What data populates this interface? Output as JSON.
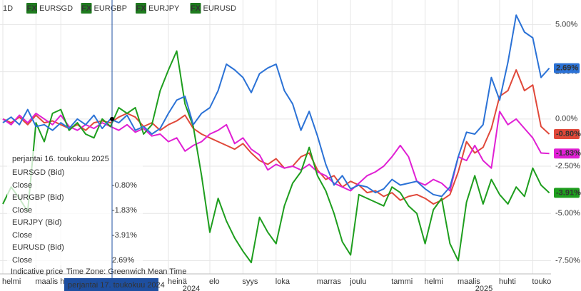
{
  "chart_data": {
    "type": "line",
    "interval": "1D",
    "categories": [
      "helmi",
      null,
      null,
      null,
      "maalis",
      null,
      null,
      "huhti",
      null,
      null,
      null,
      null,
      null,
      null,
      null,
      null,
      null,
      null,
      null,
      null,
      "heinä",
      null,
      null,
      null,
      null,
      "elo",
      null,
      null,
      null,
      "syys",
      null,
      null,
      null,
      "loka",
      null,
      null,
      null,
      null,
      "marras",
      null,
      null,
      null,
      "joulu",
      null,
      null,
      null,
      null,
      "tammi",
      null,
      null,
      null,
      "helmi",
      null,
      null,
      null,
      "maalis",
      null,
      null,
      null,
      null,
      "huhti",
      null,
      null,
      null,
      "touko",
      null,
      null
    ],
    "years": [
      "2024",
      "2025"
    ],
    "series": [
      {
        "name": "EURSGD",
        "badge": "FX",
        "tooltip_name": "EURSGD (Bid)",
        "color": "#e0483a",
        "close_label": "-0.80%",
        "values": [
          0,
          -0.2,
          0.1,
          -0.3,
          0.2,
          -0.2,
          -0.1,
          -0.3,
          -0.5,
          -0.3,
          -0.6,
          -0.2,
          -0.1,
          -0.2,
          0.1,
          0.3,
          0.1,
          -0.4,
          -0.2,
          -0.6,
          -0.3,
          -0.1,
          0.2,
          -0.5,
          -0.8,
          -1.0,
          -1.2,
          -1.4,
          -1.6,
          -1.3,
          -1.8,
          -2.2,
          -2.4,
          -2.1,
          -2.6,
          -2.5,
          -2.0,
          -1.8,
          -2.7,
          -3.2,
          -3.0,
          -3.6,
          -3.3,
          -3.5,
          -3.9,
          -3.8,
          -4.1,
          -3.9,
          -4.3,
          -4.1,
          -4.0,
          -4.2,
          -4.5,
          -4.3,
          -4.0,
          -2.8,
          -1.2,
          -1.8,
          -1.5,
          -0.5,
          1.2,
          1.5,
          2.6,
          1.5,
          1.8,
          -0.4,
          -0.8
        ]
      },
      {
        "name": "EURGBP",
        "badge": "FX",
        "tooltip_name": "EURGBP (Bid)",
        "color": "#e020d4",
        "close_label": "-1.83%",
        "values": [
          0.0,
          -0.3,
          0.2,
          -0.2,
          0.3,
          0.0,
          -0.3,
          0.2,
          -0.4,
          -0.6,
          -0.3,
          -0.5,
          -0.2,
          -0.4,
          -0.6,
          -0.3,
          -0.7,
          -0.5,
          -0.9,
          -0.8,
          -1.2,
          -1.0,
          -1.7,
          -1.4,
          -1.2,
          -0.8,
          -0.6,
          -0.3,
          -1.3,
          -1.0,
          -1.6,
          -1.9,
          -2.7,
          -2.4,
          -2.6,
          -2.5,
          -2.7,
          -2.4,
          -2.8,
          -3.0,
          -3.4,
          -3.6,
          -3.8,
          -3.4,
          -3.0,
          -2.8,
          -2.5,
          -2.0,
          -1.4,
          -2.0,
          -3.3,
          -3.5,
          -3.2,
          -3.4,
          -3.8,
          -2.0,
          -2.2,
          -1.4,
          -2.2,
          -2.6,
          0.4,
          -0.3,
          0.0,
          -0.5,
          -1.0,
          -1.8,
          -1.83
        ]
      },
      {
        "name": "EURJPY",
        "badge": "FX",
        "tooltip_name": "EURJPY (Bid)",
        "color": "#1e9e1e",
        "close_label": "-3.91%",
        "values": [
          -4.5,
          -3.6,
          -4.2,
          -4.9,
          -0.2,
          -1.2,
          0.3,
          0.5,
          -0.6,
          -0.2,
          -0.8,
          -1.0,
          0.0,
          -0.4,
          0.6,
          0.3,
          0.6,
          -0.8,
          -0.3,
          1.5,
          2.6,
          3.6,
          0.8,
          -0.4,
          -3.0,
          -6.0,
          -4.2,
          -5.4,
          -6.3,
          -7.0,
          -7.6,
          -5.2,
          -6.0,
          -6.6,
          -4.6,
          -3.4,
          -2.8,
          -1.5,
          -3.0,
          -3.8,
          -5.0,
          -6.5,
          -7.2,
          -4.0,
          -4.2,
          -4.4,
          -4.6,
          -3.6,
          -3.9,
          -4.6,
          -5.0,
          -6.6,
          -4.8,
          -4.2,
          -6.6,
          -7.5,
          -4.4,
          -3.0,
          -4.5,
          -3.2,
          -4.0,
          -4.5,
          -3.6,
          -4.1,
          -2.6,
          -3.5,
          -3.91
        ]
      },
      {
        "name": "EURUSD",
        "badge": "FX",
        "tooltip_name": "EURUSD (Bid)",
        "color": "#2b72d6",
        "close_label": "2.69%",
        "values": [
          -0.2,
          0.1,
          -0.3,
          0.5,
          -0.4,
          -0.3,
          -0.6,
          -0.2,
          -0.5,
          0.0,
          -0.3,
          0.2,
          -0.5,
          0.0,
          -0.2,
          0.2,
          -0.6,
          -0.4,
          -0.8,
          -0.5,
          0.3,
          1.0,
          1.2,
          -0.3,
          0.3,
          0.6,
          1.5,
          2.9,
          2.6,
          2.2,
          1.4,
          2.4,
          2.7,
          2.9,
          1.5,
          0.8,
          -0.6,
          0.4,
          -0.9,
          -2.4,
          -3.5,
          -3.0,
          -3.7,
          -3.5,
          -3.6,
          -3.9,
          -3.7,
          -3.2,
          -3.5,
          -3.4,
          -3.3,
          -3.7,
          -4.0,
          -4.1,
          -3.6,
          -2.0,
          -0.7,
          -0.8,
          -0.3,
          2.2,
          1.0,
          3.0,
          5.5,
          4.6,
          4.3,
          2.2,
          2.69
        ]
      }
    ],
    "ylim": [
      -8.2,
      6.3
    ],
    "yticks": [
      {
        "value": 5,
        "label": "5.00%"
      },
      {
        "value": 2.5,
        "label": "2.50%"
      },
      {
        "value": 0,
        "label": "0.00%"
      },
      {
        "value": -2.5,
        "label": "-2.50%"
      },
      {
        "value": -5,
        "label": "-5.00%"
      },
      {
        "value": -7.5,
        "label": "-7.50%"
      }
    ],
    "grid": true,
    "tooltip": {
      "date": "perjantai 16. toukokuu 2025",
      "field": "Close"
    },
    "crosshair_label": "perjantai 17. toukokuu 2024",
    "footer": {
      "note": "Indicative price",
      "timezone": "Time Zone: Greenwich Mean Time"
    }
  }
}
